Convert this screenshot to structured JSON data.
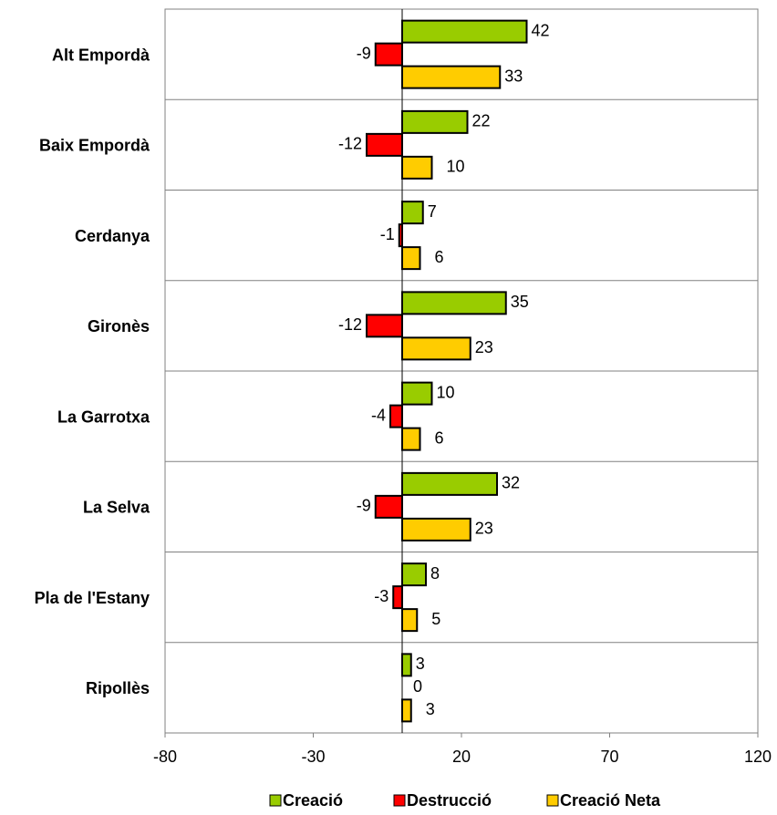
{
  "chart_data": {
    "type": "bar",
    "orientation": "horizontal",
    "categories": [
      "Alt Empordà",
      "Baix Empordà",
      "Cerdanya",
      "Gironès",
      "La Garrotxa",
      "La Selva",
      "Pla de l'Estany",
      "Ripollès"
    ],
    "series": [
      {
        "name": "Creació",
        "color": "#99CC00",
        "values": [
          42,
          22,
          7,
          35,
          10,
          32,
          8,
          3
        ]
      },
      {
        "name": "Destrucció",
        "color": "#FF0000",
        "values": [
          -9,
          -12,
          -1,
          -12,
          -4,
          -9,
          -3,
          0
        ]
      },
      {
        "name": "Creació Neta",
        "color": "#FFCC00",
        "values": [
          33,
          10,
          6,
          23,
          6,
          23,
          5,
          3
        ]
      }
    ],
    "xlim": [
      -80,
      120
    ],
    "xticks": [
      -80,
      -30,
      20,
      70,
      120
    ],
    "title": "",
    "xlabel": "",
    "ylabel": "",
    "legend_position": "bottom",
    "grid": "horizontal separators between categories"
  }
}
